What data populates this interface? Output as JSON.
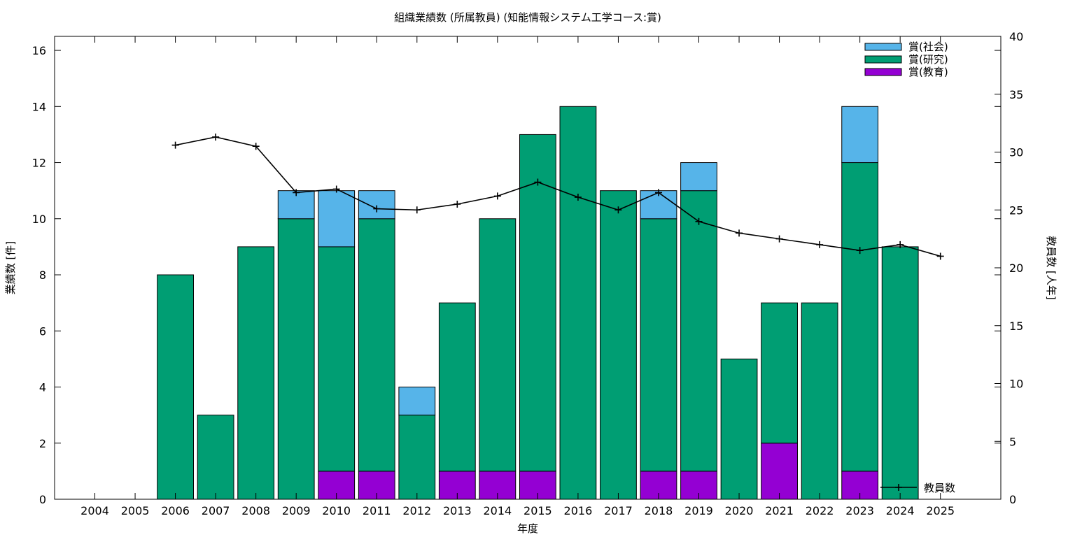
{
  "chart_data": {
    "type": "bar",
    "title": "組織業績数 (所属教員) (知能情報システム工学コース:賞)",
    "xlabel": "年度",
    "ylabel": "業績数 [件]",
    "y2label": "教員数 [人年]",
    "ylim": [
      0,
      16.5
    ],
    "y2lim": [
      0,
      40
    ],
    "yticks": [
      0,
      2,
      4,
      6,
      8,
      10,
      12,
      14,
      16
    ],
    "y2ticks": [
      0,
      5,
      10,
      15,
      20,
      25,
      30,
      35,
      40
    ],
    "grid": false,
    "legend_position": "top-right",
    "line_legend_position": "bottom-right",
    "stacked": true,
    "categories": [
      "2004",
      "2005",
      "2006",
      "2007",
      "2008",
      "2009",
      "2010",
      "2011",
      "2012",
      "2013",
      "2014",
      "2015",
      "2016",
      "2017",
      "2018",
      "2019",
      "2020",
      "2021",
      "2022",
      "2023",
      "2024",
      "2025"
    ],
    "series": [
      {
        "name": "賞(教育)",
        "color": "#9400d3",
        "values": [
          0,
          0,
          0,
          0,
          0,
          0,
          1,
          1,
          0,
          1,
          1,
          1,
          0,
          0,
          1,
          1,
          0,
          2,
          0,
          1,
          0,
          0
        ]
      },
      {
        "name": "賞(研究)",
        "color": "#009e73",
        "values": [
          0,
          0,
          8,
          3,
          9,
          10,
          8,
          9,
          3,
          6,
          9,
          12,
          14,
          11,
          9,
          10,
          5,
          5,
          7,
          11,
          9,
          0
        ]
      },
      {
        "name": "賞(社会)",
        "color": "#56b4e9",
        "values": [
          0,
          0,
          0,
          0,
          0,
          1,
          2,
          1,
          1,
          0,
          0,
          0,
          0,
          0,
          1,
          1,
          0,
          0,
          0,
          2,
          0,
          0
        ]
      }
    ],
    "legend_order": [
      "賞(社会)",
      "賞(研究)",
      "賞(教育)"
    ],
    "line_series": {
      "name": "教員数",
      "axis": "y2",
      "color": "#000000",
      "x": [
        "2006",
        "2007",
        "2008",
        "2009",
        "2010",
        "2011",
        "2012",
        "2013",
        "2014",
        "2015",
        "2016",
        "2017",
        "2018",
        "2019",
        "2020",
        "2021",
        "2022",
        "2023",
        "2024",
        "2025"
      ],
      "values": [
        30.6,
        31.3,
        30.5,
        26.5,
        26.8,
        25.1,
        25.0,
        25.5,
        26.2,
        27.4,
        26.1,
        25.0,
        26.5,
        24.0,
        23.0,
        22.5,
        22.0,
        21.5,
        22.0,
        21.0
      ]
    }
  }
}
